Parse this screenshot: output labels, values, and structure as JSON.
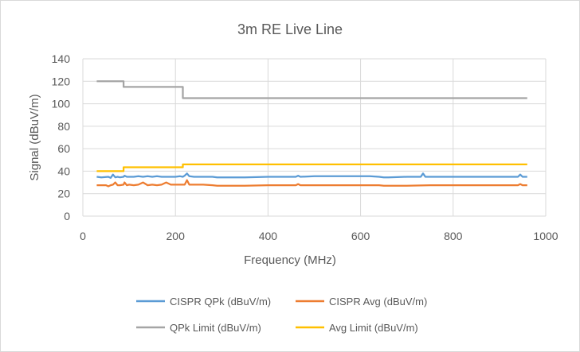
{
  "chart_data": {
    "type": "line",
    "title": "3m RE Live Line",
    "xlabel": "Frequency (MHz)",
    "ylabel": "Signal (dBuV/m)",
    "xlim": [
      0,
      1000
    ],
    "ylim": [
      0,
      140
    ],
    "x_ticks": [
      "0",
      "200",
      "400",
      "600",
      "800",
      "1000"
    ],
    "y_ticks": [
      "0",
      "20",
      "40",
      "60",
      "80",
      "100",
      "120",
      "140"
    ],
    "x_tick_values": [
      0,
      200,
      400,
      600,
      800,
      1000
    ],
    "y_tick_values": [
      0,
      20,
      40,
      60,
      80,
      100,
      120,
      140
    ],
    "grid": "horizontal and vertical",
    "legend_position": "bottom",
    "series": [
      {
        "name": "CISPR QPk (dBuV/m)",
        "color": "#5b9bd5",
        "x": [
          30,
          40,
          55,
          60,
          65,
          70,
          75,
          80,
          88,
          90,
          95,
          100,
          110,
          120,
          130,
          140,
          150,
          160,
          170,
          180,
          190,
          200,
          210,
          216,
          220,
          225,
          230,
          240,
          260,
          280,
          290,
          300,
          350,
          400,
          450,
          460,
          465,
          470,
          500,
          550,
          600,
          620,
          640,
          650,
          660,
          700,
          730,
          735,
          740,
          800,
          850,
          900,
          940,
          945,
          950,
          960
        ],
        "values": [
          35,
          34.5,
          35,
          34,
          37,
          34.5,
          35,
          34.5,
          35,
          36,
          35,
          35,
          35,
          35.5,
          35,
          35.5,
          35,
          35.5,
          35,
          35,
          35,
          35,
          35.5,
          35,
          36,
          38,
          35.5,
          35,
          35,
          35,
          34.5,
          34.5,
          34.5,
          35,
          35,
          35,
          36,
          35,
          35.5,
          35.5,
          35.5,
          35.5,
          35,
          34.5,
          34.5,
          35,
          35,
          38,
          35,
          35,
          35,
          35,
          35,
          37,
          35,
          35
        ]
      },
      {
        "name": "CISPR Avg (dBuV/m)",
        "color": "#ed7d31",
        "x": [
          30,
          40,
          50,
          55,
          60,
          65,
          70,
          75,
          80,
          88,
          90,
          95,
          100,
          110,
          120,
          130,
          140,
          150,
          160,
          170,
          180,
          190,
          200,
          210,
          216,
          220,
          225,
          230,
          240,
          260,
          280,
          290,
          300,
          350,
          400,
          450,
          460,
          465,
          470,
          500,
          550,
          600,
          640,
          650,
          660,
          700,
          750,
          800,
          850,
          900,
          940,
          945,
          950,
          960
        ],
        "values": [
          27.5,
          27.5,
          27.5,
          26.5,
          27.5,
          28,
          30,
          27.5,
          27.5,
          28,
          30,
          27.5,
          28,
          27.5,
          28,
          30,
          27.5,
          28,
          27.5,
          28,
          30,
          28,
          28,
          28,
          28,
          28,
          32,
          28,
          28,
          28,
          27.5,
          27,
          27,
          27,
          27.5,
          27.5,
          27.5,
          28.5,
          27.5,
          27.5,
          27.5,
          27.5,
          27.5,
          27,
          27,
          27,
          27.5,
          27.5,
          27.5,
          27.5,
          27.5,
          28.5,
          27.5,
          27.5
        ]
      },
      {
        "name": "QPk Limit (dBuV/m)",
        "color": "#a5a5a5",
        "x": [
          30,
          88,
          88,
          216,
          216,
          960
        ],
        "values": [
          120,
          120,
          115,
          115,
          105,
          105
        ]
      },
      {
        "name": "Avg Limit (dBuV/m)",
        "color": "#ffc000",
        "x": [
          30,
          88,
          88,
          216,
          216,
          960
        ],
        "values": [
          40,
          40,
          43.5,
          43.5,
          46,
          46
        ]
      }
    ]
  }
}
